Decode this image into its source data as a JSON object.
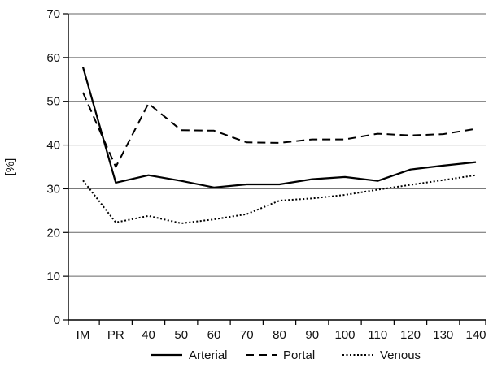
{
  "chart_data": {
    "type": "line",
    "title": "",
    "xlabel": "",
    "ylabel": "[%]",
    "ylim": [
      0,
      70
    ],
    "yticks": [
      0,
      10,
      20,
      30,
      40,
      50,
      60,
      70
    ],
    "grid": "horizontal",
    "legend_position": "bottom",
    "categories": [
      "IM",
      "PR",
      "40",
      "50",
      "60",
      "70",
      "80",
      "90",
      "100",
      "110",
      "120",
      "130",
      "140"
    ],
    "series": [
      {
        "name": "Arterial",
        "style": "solid",
        "color": "#000000",
        "values": [
          57.8,
          31.4,
          33.1,
          31.8,
          30.3,
          31.0,
          31.0,
          32.2,
          32.7,
          31.8,
          34.4,
          35.3,
          36.1
        ]
      },
      {
        "name": "Portal",
        "style": "dashed",
        "color": "#000000",
        "values": [
          52.0,
          35.0,
          49.5,
          43.4,
          43.3,
          40.6,
          40.5,
          41.3,
          41.3,
          42.6,
          42.2,
          42.5,
          43.7
        ]
      },
      {
        "name": "Venous",
        "style": "dotted",
        "color": "#000000",
        "values": [
          31.9,
          22.3,
          23.8,
          22.1,
          23.0,
          24.2,
          27.3,
          27.8,
          28.6,
          29.8,
          30.9,
          32.0,
          33.1
        ]
      }
    ]
  }
}
